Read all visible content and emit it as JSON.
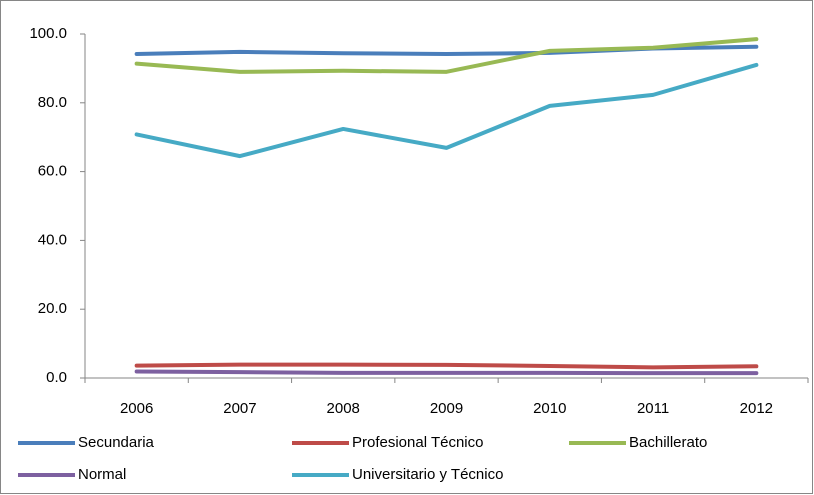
{
  "chart_data": {
    "type": "line",
    "categories": [
      "2006",
      "2007",
      "2008",
      "2009",
      "2010",
      "2011",
      "2012"
    ],
    "series": [
      {
        "name": "Secundaria",
        "color": "#4a7ebb",
        "values": [
          94.2,
          94.8,
          94.4,
          94.2,
          94.5,
          95.8,
          96.3
        ]
      },
      {
        "name": "Profesional Técnico",
        "color": "#be4b48",
        "values": [
          3.6,
          3.9,
          3.9,
          3.8,
          3.5,
          3.1,
          3.4
        ]
      },
      {
        "name": "Bachillerato",
        "color": "#98b954",
        "values": [
          91.4,
          89.0,
          89.3,
          89.0,
          95.1,
          96.0,
          98.5
        ]
      },
      {
        "name": "Normal",
        "color": "#7d60a0",
        "values": [
          1.9,
          1.7,
          1.5,
          1.5,
          1.5,
          1.4,
          1.4
        ]
      },
      {
        "name": "Universitario y Técnico",
        "color": "#46aac5",
        "values": [
          70.8,
          64.5,
          72.4,
          66.9,
          79.1,
          82.3,
          91.0
        ]
      }
    ],
    "ylim": [
      0,
      100
    ],
    "yticks": [
      {
        "value": 0,
        "label": "0.0"
      },
      {
        "value": 20,
        "label": "20.0"
      },
      {
        "value": 40,
        "label": "40.0"
      },
      {
        "value": 60,
        "label": "60.0"
      },
      {
        "value": 80,
        "label": "80.0"
      },
      {
        "value": 100,
        "label": "100.0"
      }
    ],
    "grid": false,
    "legend": "bottom"
  }
}
